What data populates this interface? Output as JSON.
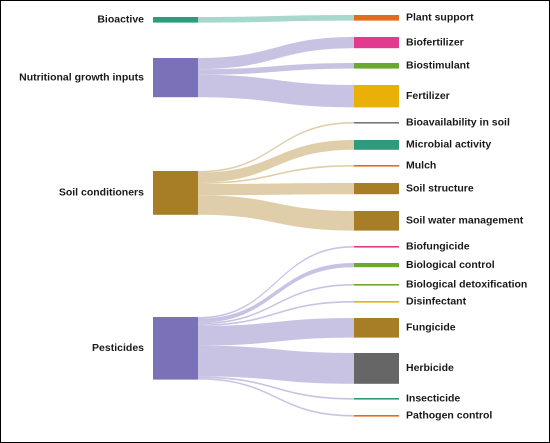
{
  "chart_data": {
    "type": "sankey",
    "sources": [
      {
        "id": "bioactive",
        "label": "Bioactive",
        "color": "#2f9a7c"
      },
      {
        "id": "nutritional",
        "label": "Nutritional growth inputs",
        "color": "#7a71b9"
      },
      {
        "id": "soil_cond",
        "label": "Soil conditioners",
        "color": "#a77d25"
      },
      {
        "id": "pesticides",
        "label": "Pesticides",
        "color": "#7a71b9"
      }
    ],
    "targets": [
      {
        "id": "plant_support",
        "label": "Plant support",
        "color": "#e46a1c"
      },
      {
        "id": "biofertilizer",
        "label": "Biofertilizer",
        "color": "#e23a8e"
      },
      {
        "id": "biostimulant",
        "label": "Biostimulant",
        "color": "#6aa832"
      },
      {
        "id": "fertilizer",
        "label": "Fertilizer",
        "color": "#eab008"
      },
      {
        "id": "bioavailability",
        "label": "Bioavailability in soil",
        "color": "#777777"
      },
      {
        "id": "microbial",
        "label": "Microbial activity",
        "color": "#2f9a7c"
      },
      {
        "id": "mulch",
        "label": "Mulch",
        "color": "#e46a1c"
      },
      {
        "id": "soil_structure",
        "label": "Soil structure",
        "color": "#a77d25"
      },
      {
        "id": "soil_water",
        "label": "Soil water management",
        "color": "#a77d25"
      },
      {
        "id": "biofungicide",
        "label": "Biofungicide",
        "color": "#e23a8e"
      },
      {
        "id": "bio_control",
        "label": "Biological control",
        "color": "#6aa832"
      },
      {
        "id": "bio_detox",
        "label": "Biological detoxification",
        "color": "#6aa832"
      },
      {
        "id": "disinfectant",
        "label": "Disinfectant",
        "color": "#eab008"
      },
      {
        "id": "fungicide",
        "label": "Fungicide",
        "color": "#a77d25"
      },
      {
        "id": "herbicide",
        "label": "Herbicide",
        "color": "#666666"
      },
      {
        "id": "insecticide",
        "label": "Insecticide",
        "color": "#2f9a7c"
      },
      {
        "id": "pathogen",
        "label": "Pathogen control",
        "color": "#e46a1c"
      }
    ],
    "links": [
      {
        "source": "bioactive",
        "target": "plant_support",
        "value": 2,
        "color": "#9fd3c7"
      },
      {
        "source": "nutritional",
        "target": "biofertilizer",
        "value": 4,
        "color": "#c2bde0"
      },
      {
        "source": "nutritional",
        "target": "biostimulant",
        "value": 2,
        "color": "#c2bde0"
      },
      {
        "source": "nutritional",
        "target": "fertilizer",
        "value": 8,
        "color": "#c2bde0"
      },
      {
        "source": "soil_cond",
        "target": "bioavailability",
        "value": 0.5,
        "color": "#dcc9a0"
      },
      {
        "source": "soil_cond",
        "target": "microbial",
        "value": 3.5,
        "color": "#dcc9a0"
      },
      {
        "source": "soil_cond",
        "target": "mulch",
        "value": 0.5,
        "color": "#dcc9a0"
      },
      {
        "source": "soil_cond",
        "target": "soil_structure",
        "value": 4,
        "color": "#dcc9a0"
      },
      {
        "source": "soil_cond",
        "target": "soil_water",
        "value": 7,
        "color": "#dcc9a0"
      },
      {
        "source": "pesticides",
        "target": "biofungicide",
        "value": 0.5,
        "color": "#c2bde0"
      },
      {
        "source": "pesticides",
        "target": "bio_control",
        "value": 1.5,
        "color": "#c2bde0"
      },
      {
        "source": "pesticides",
        "target": "bio_detox",
        "value": 0.5,
        "color": "#c2bde0"
      },
      {
        "source": "pesticides",
        "target": "disinfectant",
        "value": 0.5,
        "color": "#c2bde0"
      },
      {
        "source": "pesticides",
        "target": "fungicide",
        "value": 7,
        "color": "#c2bde0"
      },
      {
        "source": "pesticides",
        "target": "herbicide",
        "value": 11,
        "color": "#c2bde0"
      },
      {
        "source": "pesticides",
        "target": "insecticide",
        "value": 0.5,
        "color": "#c2bde0"
      },
      {
        "source": "pesticides",
        "target": "pathogen",
        "value": 0.5,
        "color": "#c2bde0"
      }
    ]
  }
}
